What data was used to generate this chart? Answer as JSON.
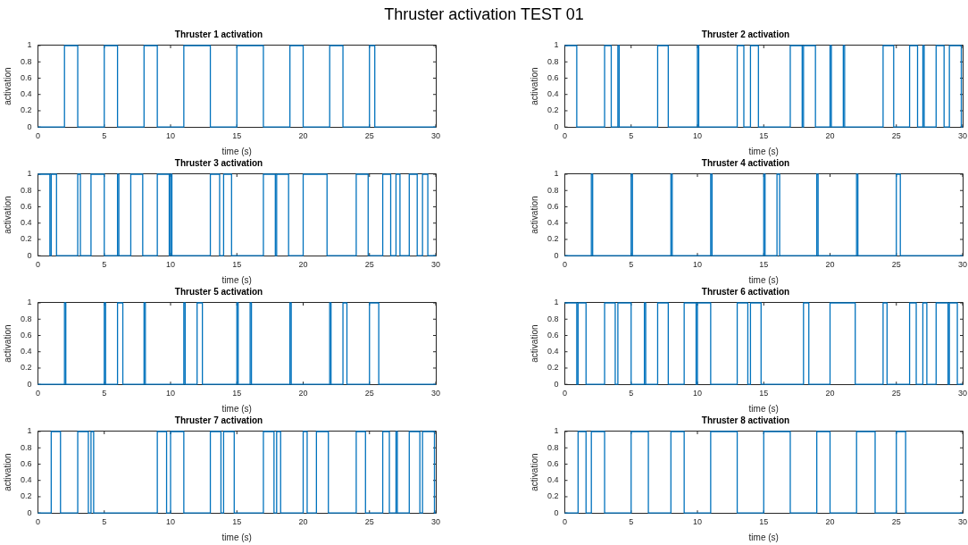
{
  "chart_data": [
    {
      "type": "other",
      "title": "Thruster activation TEST 01"
    },
    {
      "type": "step",
      "title": "Thruster 1 activation",
      "xlabel": "time (s)",
      "ylabel": "activation",
      "color": "#0072bd",
      "xlim": [
        0,
        30
      ],
      "xticks": [
        0,
        5,
        10,
        15,
        20,
        25,
        30
      ],
      "ylim": [
        0,
        1
      ],
      "yticks": [
        0,
        0.2,
        0.4,
        0.6,
        0.8,
        1
      ],
      "grid": false,
      "legend": false,
      "x": [
        0,
        2,
        3,
        5,
        6,
        8,
        9,
        11,
        13,
        15,
        17,
        19,
        20,
        22,
        23,
        25,
        25.4,
        30
      ],
      "values": [
        0,
        1,
        0,
        1,
        0,
        1,
        0,
        1,
        0,
        1,
        0,
        1,
        0,
        1,
        0,
        1,
        0,
        0
      ]
    },
    {
      "type": "step",
      "title": "Thruster 2 activation",
      "xlabel": "time (s)",
      "ylabel": "activation",
      "color": "#0072bd",
      "xlim": [
        0,
        30
      ],
      "xticks": [
        0,
        5,
        10,
        15,
        20,
        25,
        30
      ],
      "ylim": [
        0,
        1
      ],
      "yticks": [
        0,
        0.2,
        0.4,
        0.6,
        0.8,
        1
      ],
      "grid": false,
      "legend": false,
      "x": [
        0,
        0.9,
        3,
        3.5,
        4,
        4.1,
        7,
        7.8,
        10,
        10.1,
        13,
        13.5,
        14,
        14.6,
        17,
        17.9,
        18,
        18.9,
        20,
        20.1,
        21,
        21.1,
        24,
        24.8,
        26,
        26.6,
        27,
        27.1,
        28,
        28.6,
        29,
        29.9,
        30
      ],
      "values": [
        1,
        0,
        1,
        0,
        1,
        0,
        1,
        0,
        1,
        0,
        1,
        0,
        1,
        0,
        1,
        0,
        1,
        0,
        1,
        0,
        1,
        0,
        1,
        0,
        1,
        0,
        1,
        0,
        1,
        0,
        1,
        0,
        0
      ]
    },
    {
      "type": "step",
      "title": "Thruster 3 activation",
      "xlabel": "time (s)",
      "ylabel": "activation",
      "color": "#0072bd",
      "xlim": [
        0,
        30
      ],
      "xticks": [
        0,
        5,
        10,
        15,
        20,
        25,
        30
      ],
      "ylim": [
        0,
        1
      ],
      "yticks": [
        0,
        0.2,
        0.4,
        0.6,
        0.8,
        1
      ],
      "grid": false,
      "legend": false,
      "x": [
        0,
        0.9,
        1,
        1.4,
        3,
        3.2,
        4,
        5,
        6,
        6.1,
        7,
        7.9,
        9,
        9.9,
        10,
        10.1,
        13,
        13.7,
        14,
        14.6,
        17,
        17.9,
        18,
        18.9,
        20,
        21.8,
        24,
        24.9,
        26,
        26.6,
        27,
        27.3,
        28,
        28.6,
        29,
        29.4,
        30
      ],
      "values": [
        1,
        0,
        1,
        0,
        1,
        0,
        1,
        0,
        1,
        0,
        1,
        0,
        1,
        0,
        1,
        0,
        1,
        0,
        1,
        0,
        1,
        0,
        1,
        0,
        1,
        0,
        1,
        0,
        1,
        0,
        1,
        0,
        1,
        0,
        1,
        0,
        0
      ]
    },
    {
      "type": "step",
      "title": "Thruster 4 activation",
      "xlabel": "time (s)",
      "ylabel": "activation",
      "color": "#0072bd",
      "xlim": [
        0,
        30
      ],
      "xticks": [
        0,
        5,
        10,
        15,
        20,
        25,
        30
      ],
      "ylim": [
        0,
        1
      ],
      "yticks": [
        0,
        0.2,
        0.4,
        0.6,
        0.8,
        1
      ],
      "grid": false,
      "legend": false,
      "x": [
        0,
        2,
        2.1,
        5,
        5.1,
        8,
        8.1,
        11,
        11.1,
        15,
        15.1,
        16,
        16.2,
        19,
        19.1,
        22,
        22.1,
        25,
        25.3,
        30
      ],
      "values": [
        0,
        1,
        0,
        1,
        0,
        1,
        0,
        1,
        0,
        1,
        0,
        1,
        0,
        1,
        0,
        1,
        0,
        1,
        0,
        0
      ]
    },
    {
      "type": "step",
      "title": "Thruster 5 activation",
      "xlabel": "time (s)",
      "ylabel": "activation",
      "color": "#0072bd",
      "xlim": [
        0,
        30
      ],
      "xticks": [
        0,
        5,
        10,
        15,
        20,
        25,
        30
      ],
      "ylim": [
        0,
        1
      ],
      "yticks": [
        0,
        0.2,
        0.4,
        0.6,
        0.8,
        1
      ],
      "grid": false,
      "legend": false,
      "x": [
        0,
        2,
        2.1,
        5,
        5.1,
        6,
        6.4,
        8,
        8.1,
        11,
        11.1,
        12,
        12.4,
        15,
        15.1,
        16,
        16.1,
        19,
        19.1,
        22,
        22.1,
        23,
        23.3,
        25,
        25.7,
        30
      ],
      "values": [
        0,
        1,
        0,
        1,
        0,
        1,
        0,
        1,
        0,
        1,
        0,
        1,
        0,
        1,
        0,
        1,
        0,
        1,
        0,
        1,
        0,
        1,
        0,
        1,
        0,
        0
      ]
    },
    {
      "type": "step",
      "title": "Thruster 6 activation",
      "xlabel": "time (s)",
      "ylabel": "activation",
      "color": "#0072bd",
      "xlim": [
        0,
        30
      ],
      "xticks": [
        0,
        5,
        10,
        15,
        20,
        25,
        30
      ],
      "ylim": [
        0,
        1
      ],
      "yticks": [
        0,
        0.2,
        0.4,
        0.6,
        0.8,
        1
      ],
      "grid": false,
      "legend": false,
      "x": [
        0,
        0.9,
        1,
        1.6,
        3,
        3.8,
        4,
        5,
        6,
        6.1,
        7,
        7.8,
        9,
        9.9,
        10,
        11,
        13,
        13.8,
        14,
        14.8,
        18,
        18.4,
        20,
        21.9,
        24,
        24.3,
        26,
        26.5,
        27,
        27.3,
        28,
        28.9,
        29,
        29.6,
        30
      ],
      "values": [
        1,
        0,
        1,
        0,
        1,
        0,
        1,
        0,
        1,
        0,
        1,
        0,
        1,
        0,
        1,
        0,
        1,
        0,
        1,
        0,
        1,
        0,
        1,
        0,
        1,
        0,
        1,
        0,
        1,
        0,
        1,
        0,
        1,
        0,
        0
      ]
    },
    {
      "type": "step",
      "title": "Thruster 7 activation",
      "xlabel": "time (s)",
      "ylabel": "activation",
      "color": "#0072bd",
      "xlim": [
        0,
        30
      ],
      "xticks": [
        0,
        5,
        10,
        15,
        20,
        25,
        30
      ],
      "ylim": [
        0,
        1
      ],
      "yticks": [
        0,
        0.2,
        0.4,
        0.6,
        0.8,
        1
      ],
      "grid": false,
      "legend": false,
      "x": [
        0,
        1,
        1.7,
        3,
        3.8,
        4,
        4.2,
        9,
        9.7,
        10,
        11,
        13,
        13.8,
        14,
        14.8,
        17,
        17.8,
        18,
        18.3,
        20,
        20.3,
        21,
        21.9,
        24,
        24.7,
        26,
        26.5,
        27,
        27.1,
        28,
        28.8,
        29,
        29.9,
        30
      ],
      "values": [
        0,
        1,
        0,
        1,
        0,
        1,
        0,
        1,
        0,
        1,
        0,
        1,
        0,
        1,
        0,
        1,
        0,
        1,
        0,
        1,
        0,
        1,
        0,
        1,
        0,
        1,
        0,
        1,
        0,
        1,
        0,
        1,
        0,
        0
      ]
    },
    {
      "type": "step",
      "title": "Thruster 8 activation",
      "xlabel": "time (s)",
      "ylabel": "activation",
      "color": "#0072bd",
      "xlim": [
        0,
        30
      ],
      "xticks": [
        0,
        5,
        10,
        15,
        20,
        25,
        30
      ],
      "ylim": [
        0,
        1
      ],
      "yticks": [
        0,
        0.2,
        0.4,
        0.6,
        0.8,
        1
      ],
      "grid": false,
      "legend": false,
      "x": [
        0,
        1,
        1.6,
        2,
        3,
        5,
        6.3,
        8,
        9,
        11,
        13,
        15,
        17,
        19,
        20,
        22,
        23.4,
        25,
        25.7,
        30
      ],
      "values": [
        0,
        1,
        0,
        1,
        0,
        1,
        0,
        1,
        0,
        1,
        0,
        1,
        0,
        1,
        0,
        1,
        0,
        1,
        0,
        0
      ]
    }
  ]
}
